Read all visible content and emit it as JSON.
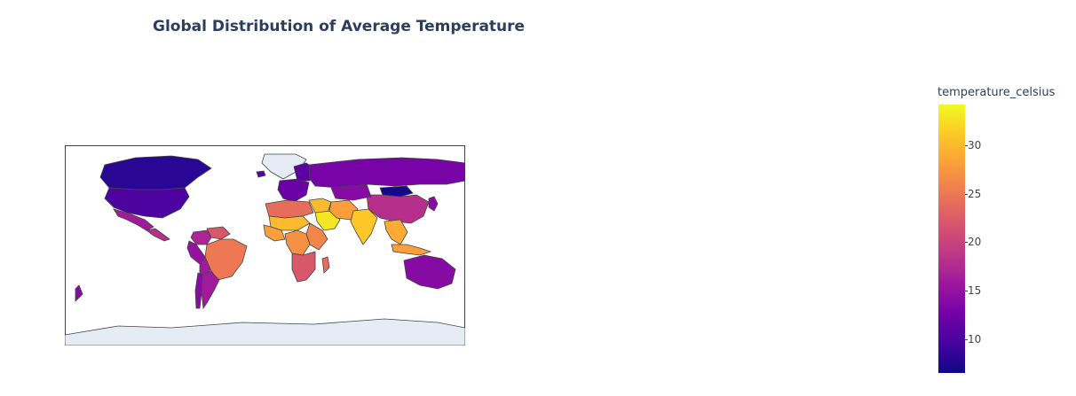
{
  "title": "Global Distribution of Average Temperature",
  "map": {
    "projection": "equirectangular",
    "land_color": "#e5ecf6",
    "border_color": "#444444",
    "ocean_color": "#ffffff"
  },
  "colorbar": {
    "title": "temperature_celsius",
    "colorscale": "Plasma",
    "range": [
      6.5,
      34.2
    ],
    "ticks": [
      "10",
      "15",
      "20",
      "25",
      "30"
    ]
  },
  "chart_data": {
    "type": "choropleth",
    "title": "Global Distribution of Average Temperature",
    "color_variable": "temperature_celsius",
    "color_range": [
      6.5,
      34.2
    ],
    "regions": [
      {
        "region": "Canada",
        "temperature_celsius": 8
      },
      {
        "region": "United States",
        "temperature_celsius": 10
      },
      {
        "region": "Mexico",
        "temperature_celsius": 16
      },
      {
        "region": "Central America",
        "temperature_celsius": 18
      },
      {
        "region": "Colombia",
        "temperature_celsius": 17
      },
      {
        "region": "Venezuela",
        "temperature_celsius": 22
      },
      {
        "region": "Brazil",
        "temperature_celsius": 25
      },
      {
        "region": "Peru",
        "temperature_celsius": 15
      },
      {
        "region": "Bolivia",
        "temperature_celsius": 16
      },
      {
        "region": "Chile",
        "temperature_celsius": 14
      },
      {
        "region": "Argentina",
        "temperature_celsius": 16
      },
      {
        "region": "Greenland",
        "temperature_celsius": null
      },
      {
        "region": "Iceland",
        "temperature_celsius": 11
      },
      {
        "region": "Western Europe",
        "temperature_celsius": 12
      },
      {
        "region": "Scandinavia",
        "temperature_celsius": 11
      },
      {
        "region": "Russia",
        "temperature_celsius": 13
      },
      {
        "region": "Mongolia",
        "temperature_celsius": 7
      },
      {
        "region": "China",
        "temperature_celsius": 18
      },
      {
        "region": "Korea and Japan",
        "temperature_celsius": 14
      },
      {
        "region": "Kazakhstan",
        "temperature_celsius": 14
      },
      {
        "region": "Middle East",
        "temperature_celsius": 30
      },
      {
        "region": "Arabian Peninsula",
        "temperature_celsius": 33
      },
      {
        "region": "Iran",
        "temperature_celsius": 28
      },
      {
        "region": "India",
        "temperature_celsius": 31
      },
      {
        "region": "Southeast Asia",
        "temperature_celsius": 29
      },
      {
        "region": "Indonesia",
        "temperature_celsius": 28
      },
      {
        "region": "North Africa",
        "temperature_celsius": 24
      },
      {
        "region": "Sahel",
        "temperature_celsius": 30
      },
      {
        "region": "West Africa",
        "temperature_celsius": 28
      },
      {
        "region": "East Africa",
        "temperature_celsius": 26
      },
      {
        "region": "Central Africa",
        "temperature_celsius": 27
      },
      {
        "region": "Southern Africa",
        "temperature_celsius": 22
      },
      {
        "region": "Madagascar",
        "temperature_celsius": 24
      },
      {
        "region": "Australia",
        "temperature_celsius": 14
      },
      {
        "region": "New Zealand",
        "temperature_celsius": 14
      },
      {
        "region": "Antarctica",
        "temperature_celsius": null
      }
    ]
  }
}
